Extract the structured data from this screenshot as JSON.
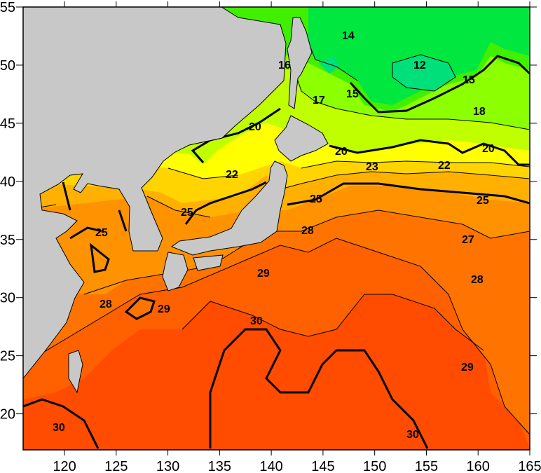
{
  "map": {
    "x_axis": {
      "ticks": [
        120,
        125,
        130,
        135,
        140,
        145,
        150,
        155,
        160,
        165
      ],
      "range": [
        116,
        165
      ]
    },
    "y_axis": {
      "ticks": [
        20,
        25,
        30,
        35,
        40,
        45,
        50,
        55
      ],
      "range": [
        16.9,
        55
      ]
    },
    "colors": {
      "land": "#c8c8c8",
      "t12": "#00e07a",
      "t14": "#00e840",
      "t16": "#40f000",
      "t18": "#8cff00",
      "t20": "#c0ff00",
      "t22": "#ffff00",
      "t24": "#ffd400",
      "t25": "#ffb000",
      "t27": "#ff9200",
      "t28": "#ff7400",
      "t29": "#ff6000",
      "t30": "#ff4c00"
    },
    "contour_labels": [
      "14",
      "12",
      "15",
      "15",
      "18",
      "17",
      "16",
      "20",
      "20",
      "20",
      "23",
      "22",
      "22",
      "25",
      "25",
      "25",
      "25",
      "28",
      "27",
      "29",
      "28",
      "28",
      "29",
      "30",
      "29",
      "30",
      "30"
    ]
  }
}
